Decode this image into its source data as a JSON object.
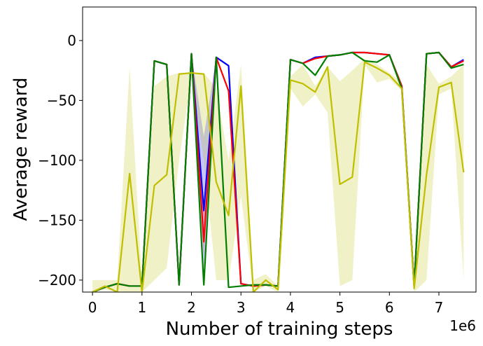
{
  "chart_data": {
    "type": "line",
    "xlabel": "Number of training steps",
    "ylabel": "Average reward",
    "x_offset_label": "1e6",
    "xlim": [
      -0.2,
      7.75
    ],
    "ylim": [
      -210,
      28
    ],
    "xticks": [
      0,
      1,
      2,
      3,
      4,
      5,
      6,
      7
    ],
    "xtick_labels": [
      "0",
      "1",
      "2",
      "3",
      "4",
      "5",
      "6",
      "7"
    ],
    "yticks": [
      0,
      -50,
      -100,
      -150,
      -200
    ],
    "ytick_labels": [
      "0",
      "−50",
      "−100",
      "−150",
      "−200"
    ],
    "grid": false,
    "series": [
      {
        "color": "#0000ff",
        "x": [
          0,
          0.25,
          0.5,
          0.75,
          1,
          1.25,
          1.5,
          1.75,
          2,
          2.25,
          2.5,
          2.75,
          3,
          3.25,
          3.5,
          3.75,
          4,
          4.25,
          4.5,
          4.75,
          5,
          5.25,
          5.5,
          5.75,
          6,
          6.25,
          6.5,
          6.75,
          7,
          7.25,
          7.5
        ],
        "y": [
          -210,
          -206,
          -203,
          -205,
          -205,
          -17,
          -20,
          -204,
          -11,
          -142,
          -14,
          -21,
          -203,
          -205,
          -204,
          -205,
          -16,
          -19,
          -14,
          -13,
          -12,
          -10,
          -10,
          -11,
          -12,
          -38,
          -205,
          -11,
          -10,
          -22,
          -16
        ],
        "band_low": [
          -210,
          -206,
          -203,
          -205,
          -205,
          -17,
          -20,
          -204,
          -11,
          -190,
          -14,
          -21,
          -203,
          -205,
          -204,
          -205,
          -16,
          -19,
          -14,
          -13,
          -12,
          -10,
          -10,
          -11,
          -12,
          -38,
          -205,
          -11,
          -10,
          -22,
          -16
        ],
        "band_high": [
          -210,
          -206,
          -203,
          -205,
          -205,
          -17,
          -20,
          -204,
          -11,
          -80,
          -14,
          -21,
          -203,
          -205,
          -204,
          -205,
          -16,
          -19,
          -14,
          -13,
          -12,
          -10,
          -10,
          -11,
          -12,
          -38,
          -205,
          -11,
          -10,
          -22,
          -16
        ]
      },
      {
        "color": "#ff0000",
        "x": [
          0,
          0.25,
          0.5,
          0.75,
          1,
          1.25,
          1.5,
          1.75,
          2,
          2.25,
          2.5,
          2.75,
          3,
          3.25,
          3.5,
          3.75,
          4,
          4.25,
          4.5,
          4.75,
          5,
          5.25,
          5.5,
          5.75,
          6,
          6.25,
          6.5,
          6.75,
          7,
          7.25,
          7.5
        ],
        "y": [
          -210,
          -206,
          -203,
          -205,
          -205,
          -17,
          -20,
          -204,
          -11,
          -168,
          -14,
          -42,
          -203,
          -205,
          -204,
          -205,
          -16,
          -19,
          -15,
          -13,
          -12,
          -10,
          -10,
          -11,
          -12,
          -38,
          -205,
          -11,
          -10,
          -22,
          -17
        ],
        "band_low": [
          -210,
          -206,
          -203,
          -205,
          -205,
          -17,
          -20,
          -204,
          -11,
          -180,
          -14,
          -42,
          -203,
          -205,
          -204,
          -205,
          -16,
          -19,
          -15,
          -13,
          -12,
          -10,
          -10,
          -11,
          -12,
          -38,
          -205,
          -11,
          -10,
          -22,
          -17
        ],
        "band_high": [
          -210,
          -206,
          -203,
          -205,
          -205,
          -17,
          -20,
          -204,
          -11,
          -140,
          -14,
          -42,
          -203,
          -205,
          -204,
          -205,
          -16,
          -19,
          -15,
          -13,
          -12,
          -10,
          -10,
          -11,
          -12,
          -38,
          -205,
          -11,
          -10,
          -22,
          -17
        ]
      },
      {
        "color": "#008000",
        "x": [
          0,
          0.25,
          0.5,
          0.75,
          1,
          1.25,
          1.5,
          1.75,
          2,
          2.25,
          2.5,
          2.75,
          3,
          3.25,
          3.5,
          3.75,
          4,
          4.25,
          4.5,
          4.75,
          5,
          5.25,
          5.5,
          5.75,
          6,
          6.25,
          6.5,
          6.75,
          7,
          7.25,
          7.5
        ],
        "y": [
          -210,
          -206,
          -203,
          -205,
          -205,
          -17,
          -20,
          -204,
          -11,
          -204,
          -14,
          -206,
          -205,
          -204,
          -204,
          -205,
          -16,
          -19,
          -29,
          -13,
          -12,
          -10,
          -17,
          -18,
          -12,
          -40,
          -205,
          -11,
          -10,
          -23,
          -20
        ],
        "band_low": [
          -210,
          -206,
          -203,
          -205,
          -205,
          -17,
          -20,
          -204,
          -11,
          -204,
          -14,
          -206,
          -205,
          -204,
          -204,
          -205,
          -16,
          -19,
          -29,
          -13,
          -12,
          -10,
          -17,
          -18,
          -12,
          -40,
          -205,
          -11,
          -10,
          -23,
          -20
        ],
        "band_high": [
          -210,
          -206,
          -203,
          -205,
          -205,
          -17,
          -20,
          -204,
          -11,
          -204,
          -14,
          -206,
          -205,
          -204,
          -204,
          -205,
          -16,
          -19,
          -29,
          -13,
          -12,
          -10,
          -17,
          -18,
          -12,
          -40,
          -205,
          -11,
          -10,
          -23,
          -20
        ]
      },
      {
        "color": "#bfbf00",
        "x": [
          0,
          0.25,
          0.5,
          0.75,
          1,
          1.25,
          1.5,
          1.75,
          2,
          2.25,
          2.5,
          2.75,
          3,
          3.25,
          3.5,
          3.75,
          4,
          4.25,
          4.5,
          4.75,
          5,
          5.25,
          5.5,
          5.75,
          6,
          6.25,
          6.5,
          6.75,
          7,
          7.25,
          7.5
        ],
        "y": [
          -210,
          -205,
          -210,
          -111,
          -210,
          -121,
          -112,
          -28,
          -27,
          -28,
          -118,
          -146,
          -38,
          -210,
          -200,
          -208,
          -33,
          -36,
          -43,
          -22,
          -120,
          -114,
          -18,
          -23,
          -29,
          -40,
          -207,
          -112,
          -39,
          -35,
          -110
        ],
        "band_low": [
          -210,
          -208,
          -210,
          -210,
          -210,
          -200,
          -190,
          -100,
          -30,
          -100,
          -200,
          -200,
          -130,
          -210,
          -205,
          -210,
          -40,
          -55,
          -45,
          -60,
          -205,
          -200,
          -20,
          -35,
          -32,
          -42,
          -210,
          -200,
          -45,
          -40,
          -200
        ],
        "band_high": [
          -200,
          -200,
          -200,
          -22,
          -200,
          -38,
          -30,
          -27,
          -27,
          -27,
          -40,
          -100,
          -20,
          -200,
          -195,
          -205,
          -30,
          -20,
          -38,
          -22,
          -34,
          -25,
          -15,
          -20,
          -27,
          -35,
          -200,
          -20,
          -36,
          -30,
          -20
        ]
      }
    ]
  }
}
